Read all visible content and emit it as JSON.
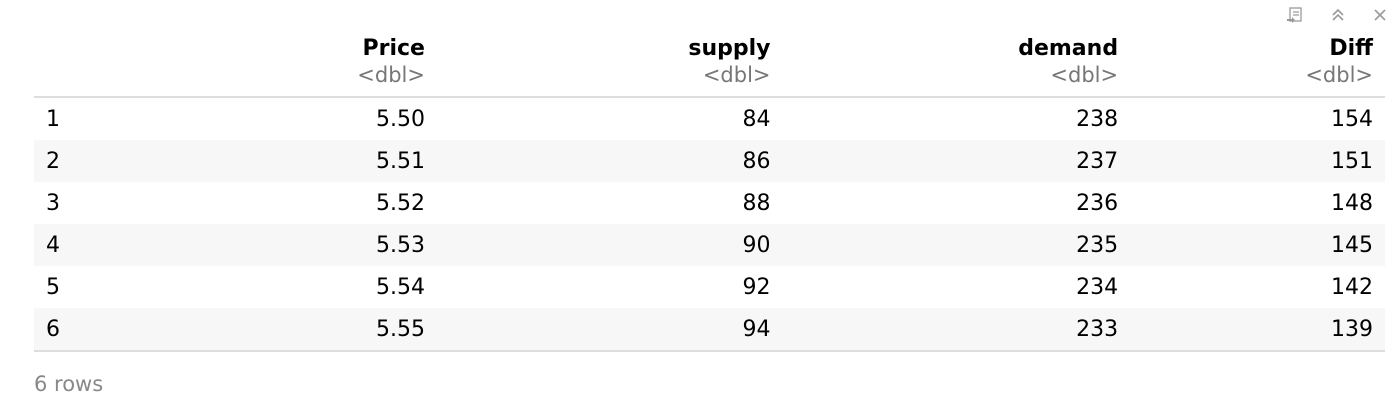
{
  "toolbar": {
    "icons": [
      "export-icon",
      "collapse-icon",
      "close-icon"
    ],
    "icon_color": "#9a9a9a"
  },
  "table": {
    "columns": [
      {
        "name": "Price",
        "type": "<dbl>"
      },
      {
        "name": "supply",
        "type": "<dbl>"
      },
      {
        "name": "demand",
        "type": "<dbl>"
      },
      {
        "name": "Diff",
        "type": "<dbl>"
      }
    ],
    "rows": [
      {
        "index": "1",
        "cells": [
          "5.50",
          "84",
          "238",
          "154"
        ]
      },
      {
        "index": "2",
        "cells": [
          "5.51",
          "86",
          "237",
          "151"
        ]
      },
      {
        "index": "3",
        "cells": [
          "5.52",
          "88",
          "236",
          "148"
        ]
      },
      {
        "index": "4",
        "cells": [
          "5.53",
          "90",
          "235",
          "145"
        ]
      },
      {
        "index": "5",
        "cells": [
          "5.54",
          "92",
          "234",
          "142"
        ]
      },
      {
        "index": "6",
        "cells": [
          "5.55",
          "94",
          "233",
          "139"
        ]
      }
    ]
  },
  "footer": {
    "row_count": "6 rows"
  },
  "colors": {
    "header_border": "#dddddd",
    "stripe": "#f7f7f7",
    "muted_text": "#777777"
  }
}
